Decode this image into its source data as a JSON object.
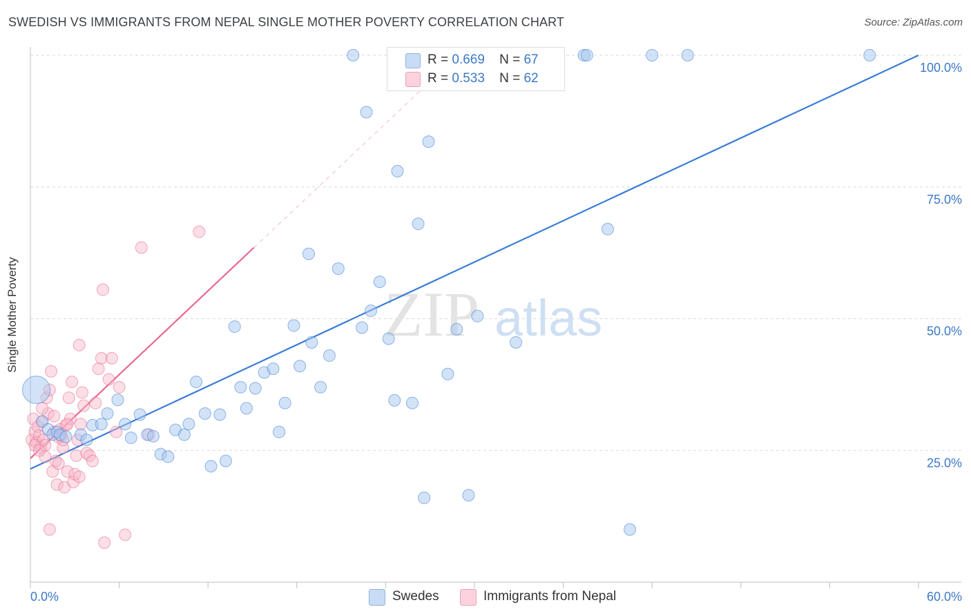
{
  "header": {
    "title": "SWEDISH VS IMMIGRANTS FROM NEPAL SINGLE MOTHER POVERTY CORRELATION CHART",
    "source": "Source: ZipAtlas.com"
  },
  "watermark": {
    "part1": "ZIP",
    "part2": "atlas"
  },
  "legend": {
    "r_label": "R =",
    "n_label": "N =",
    "rows": [
      {
        "r": "0.669",
        "n": "67",
        "color": "#a8c8f0"
      },
      {
        "r": "0.533",
        "n": "62",
        "color": "#f7b6c8"
      }
    ]
  },
  "bottom_legend": {
    "swedes": "Swedes",
    "nepal": "Immigrants from Nepal"
  },
  "chart_data": {
    "type": "scatter",
    "title": "SWEDISH VS IMMIGRANTS FROM NEPAL SINGLE MOTHER POVERTY CORRELATION CHART",
    "xlabel": "",
    "ylabel": "Single Mother Poverty",
    "xlim": [
      0,
      60
    ],
    "ylim": [
      0,
      100
    ],
    "x_tick_labels": [
      "0.0%",
      "60.0%"
    ],
    "y_tick_labels": [
      "25.0%",
      "50.0%",
      "75.0%",
      "100.0%"
    ],
    "y_ticks": [
      25,
      50,
      75,
      100
    ],
    "grid": true,
    "legend_position": "top-center",
    "colors": {
      "swedes": "#3a7bd5",
      "nepal": "#e8678d",
      "swedes_fill": "#a8c8f0",
      "nepal_fill": "#f7b6c8"
    },
    "series": [
      {
        "name": "Swedes",
        "trend": {
          "x": [
            0,
            60
          ],
          "y": [
            21.5,
            100
          ]
        },
        "points": [
          [
            0.4,
            36.5
          ],
          [
            0.8,
            30.5
          ],
          [
            1.2,
            29.0
          ],
          [
            1.5,
            28.0
          ],
          [
            1.8,
            28.5
          ],
          [
            2.0,
            28.0
          ],
          [
            2.4,
            27.6
          ],
          [
            3.4,
            28.0
          ],
          [
            3.8,
            27.0
          ],
          [
            4.2,
            29.8
          ],
          [
            4.8,
            30.0
          ],
          [
            5.2,
            32.0
          ],
          [
            5.9,
            34.6
          ],
          [
            6.4,
            30.0
          ],
          [
            6.8,
            27.4
          ],
          [
            7.4,
            31.8
          ],
          [
            7.9,
            28.0
          ],
          [
            8.3,
            27.7
          ],
          [
            8.8,
            24.3
          ],
          [
            9.3,
            23.8
          ],
          [
            9.8,
            28.9
          ],
          [
            10.4,
            28.0
          ],
          [
            10.7,
            30.0
          ],
          [
            11.2,
            38.0
          ],
          [
            11.8,
            32.0
          ],
          [
            12.2,
            22.0
          ],
          [
            12.8,
            31.8
          ],
          [
            13.2,
            23.0
          ],
          [
            13.8,
            48.5
          ],
          [
            14.2,
            37.0
          ],
          [
            14.6,
            33.0
          ],
          [
            15.2,
            36.8
          ],
          [
            15.8,
            39.8
          ],
          [
            16.4,
            40.5
          ],
          [
            16.8,
            28.5
          ],
          [
            17.2,
            34.0
          ],
          [
            17.8,
            48.7
          ],
          [
            18.2,
            41.0
          ],
          [
            18.8,
            62.3
          ],
          [
            19.0,
            45.5
          ],
          [
            19.6,
            37.0
          ],
          [
            20.2,
            43.0
          ],
          [
            20.8,
            59.5
          ],
          [
            21.8,
            100.0
          ],
          [
            22.4,
            48.3
          ],
          [
            22.7,
            89.2
          ],
          [
            23.0,
            51.5
          ],
          [
            23.6,
            57.0
          ],
          [
            24.2,
            46.2
          ],
          [
            24.6,
            34.5
          ],
          [
            24.8,
            78.0
          ],
          [
            25.8,
            34.0
          ],
          [
            26.2,
            68.0
          ],
          [
            26.6,
            16.0
          ],
          [
            26.9,
            83.6
          ],
          [
            28.2,
            39.5
          ],
          [
            28.8,
            48.0
          ],
          [
            29.6,
            16.5
          ],
          [
            30.2,
            50.5
          ],
          [
            31.0,
            100.0
          ],
          [
            32.8,
            45.5
          ],
          [
            37.4,
            100.0
          ],
          [
            37.6,
            100.0
          ],
          [
            39.0,
            67.0
          ],
          [
            40.5,
            10.0
          ],
          [
            42.0,
            100.0
          ],
          [
            44.4,
            100.0
          ],
          [
            56.7,
            100.0
          ]
        ]
      },
      {
        "name": "Immigrants from Nepal",
        "trend": {
          "x": [
            0,
            15.1
          ],
          "y": [
            23.5,
            63.5
          ]
        },
        "trend_extension": {
          "x": [
            15.1,
            27.0
          ],
          "y": [
            63.5,
            95.0
          ]
        },
        "points": [
          [
            0.1,
            27.0
          ],
          [
            0.2,
            31.0
          ],
          [
            0.3,
            28.5
          ],
          [
            0.4,
            26.5
          ],
          [
            0.5,
            29.5
          ],
          [
            0.6,
            27.8
          ],
          [
            0.7,
            25.5
          ],
          [
            0.8,
            30.5
          ],
          [
            0.9,
            27.0
          ],
          [
            1.0,
            26.0
          ],
          [
            1.1,
            35.0
          ],
          [
            1.2,
            32.0
          ],
          [
            1.3,
            36.5
          ],
          [
            1.4,
            40.0
          ],
          [
            1.5,
            21.0
          ],
          [
            1.6,
            28.5
          ],
          [
            1.7,
            23.0
          ],
          [
            1.8,
            18.5
          ],
          [
            1.9,
            27.5
          ],
          [
            2.0,
            29.0
          ],
          [
            2.1,
            27.8
          ],
          [
            2.2,
            25.5
          ],
          [
            2.3,
            18.0
          ],
          [
            2.4,
            29.8
          ],
          [
            2.5,
            21.0
          ],
          [
            2.6,
            35.0
          ],
          [
            2.7,
            31.0
          ],
          [
            2.8,
            38.0
          ],
          [
            2.9,
            19.0
          ],
          [
            3.0,
            20.5
          ],
          [
            3.1,
            24.0
          ],
          [
            3.2,
            27.0
          ],
          [
            3.3,
            45.0
          ],
          [
            3.4,
            30.0
          ],
          [
            3.5,
            36.0
          ],
          [
            3.6,
            33.5
          ],
          [
            3.8,
            24.5
          ],
          [
            4.0,
            24.0
          ],
          [
            4.2,
            23.0
          ],
          [
            4.4,
            34.0
          ],
          [
            4.6,
            40.5
          ],
          [
            4.8,
            42.5
          ],
          [
            4.9,
            55.5
          ],
          [
            5.0,
            7.5
          ],
          [
            5.3,
            38.5
          ],
          [
            5.5,
            42.5
          ],
          [
            5.8,
            28.5
          ],
          [
            6.0,
            37.0
          ],
          [
            6.4,
            9.0
          ],
          [
            7.5,
            63.5
          ],
          [
            8.0,
            28.0
          ],
          [
            11.4,
            66.5
          ],
          [
            1.3,
            10.0
          ],
          [
            2.5,
            30.0
          ],
          [
            0.8,
            33.0
          ],
          [
            1.9,
            22.5
          ],
          [
            3.3,
            20.0
          ],
          [
            0.3,
            26.0
          ],
          [
            1.0,
            23.8
          ],
          [
            2.2,
            27.0
          ],
          [
            1.6,
            31.5
          ],
          [
            0.6,
            25.0
          ]
        ]
      }
    ]
  }
}
